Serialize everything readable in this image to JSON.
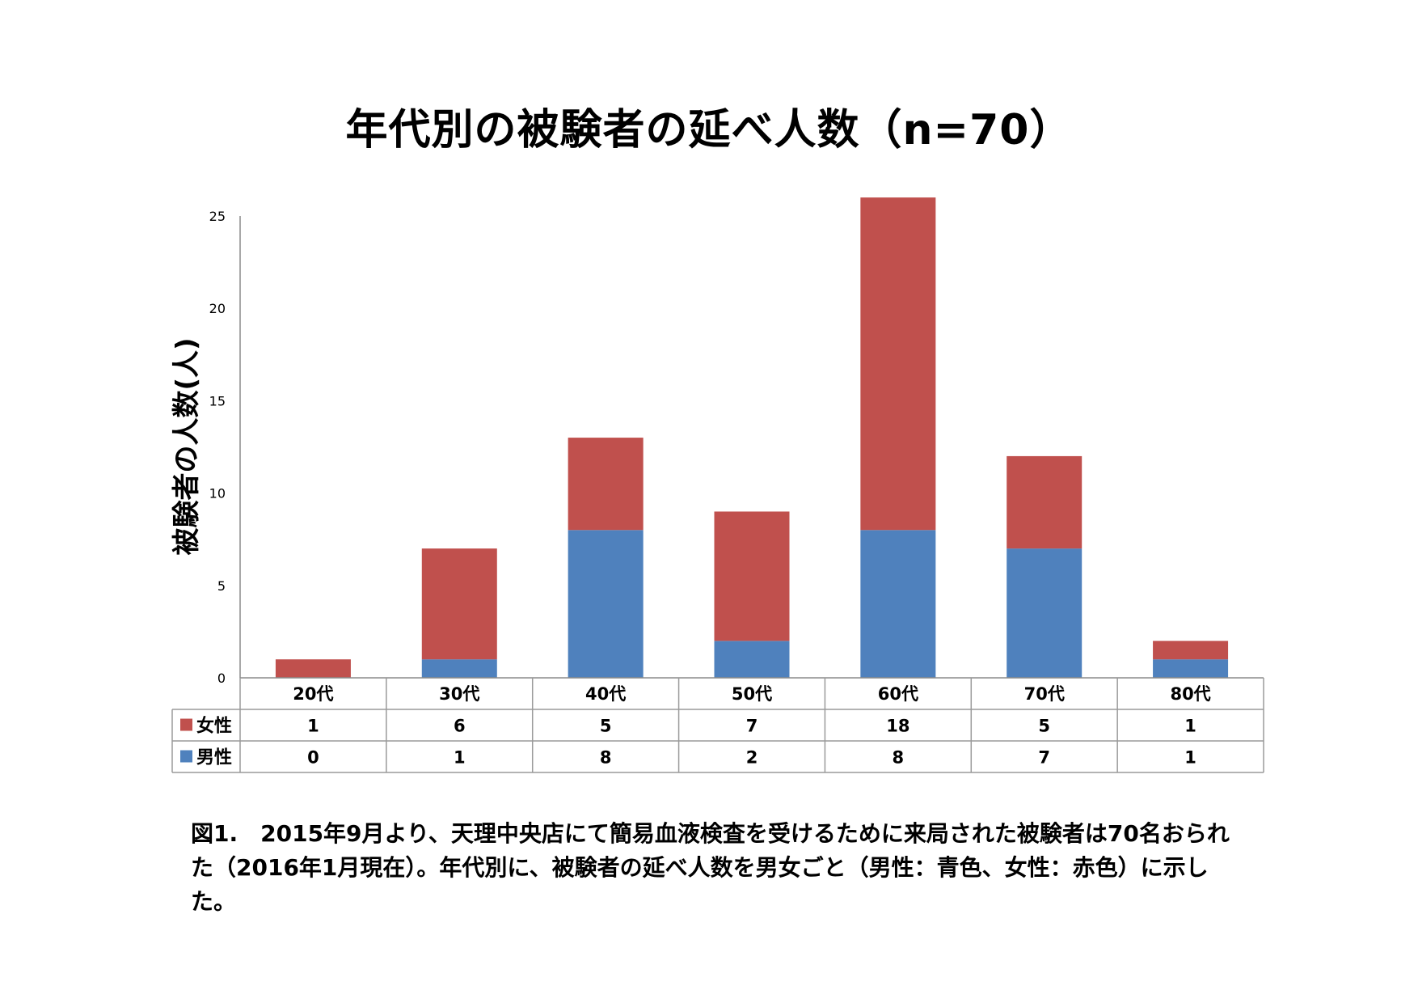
{
  "title": "年代別の被験者の延べ人数（n=70）",
  "caption": "図1.　2015年9月より、天理中央店にて簡易血液検査を受けるために来局された被験者は70名おられた（2016年1月現在）。年代別に、被験者の延べ人数を男女ごと（男性：青色、女性：赤色）に示した。",
  "chart_data": {
    "type": "bar",
    "stacked": true,
    "title": "年代別の被験者の延べ人数（n=70）",
    "ylabel": "被験者の人数(人)",
    "xlabel": "",
    "categories": [
      "20代",
      "30代",
      "40代",
      "50代",
      "60代",
      "70代",
      "80代"
    ],
    "ylim": [
      0,
      25
    ],
    "yticks": [
      0,
      5,
      10,
      15,
      20,
      25
    ],
    "series": [
      {
        "name": "男性",
        "color": "#4F81BD",
        "values": [
          0,
          1,
          8,
          2,
          8,
          7,
          1
        ]
      },
      {
        "name": "女性",
        "color": "#C0504D",
        "values": [
          1,
          6,
          5,
          7,
          18,
          5,
          1
        ]
      }
    ],
    "data_table": true,
    "table_row_order": [
      "女性",
      "男性"
    ]
  }
}
